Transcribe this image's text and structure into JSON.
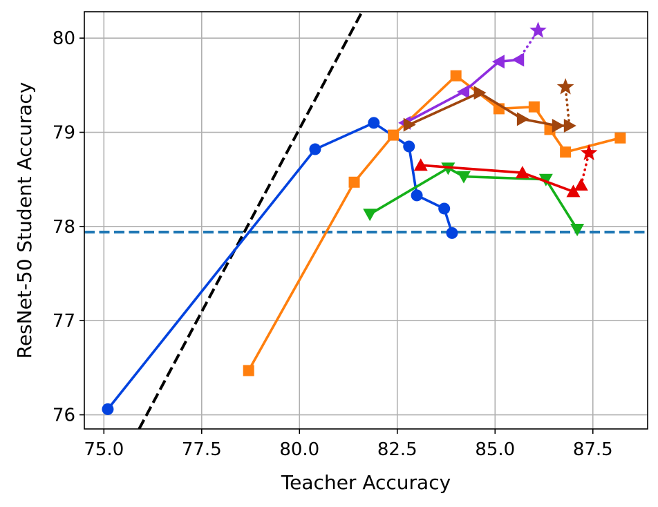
{
  "chart_data": {
    "type": "line",
    "xlabel": "Teacher Accuracy",
    "ylabel": "ResNet-50 Student Accuracy",
    "xlim": [
      74.5,
      88.9
    ],
    "ylim": [
      75.85,
      80.28
    ],
    "xticks": [
      75.0,
      77.5,
      80.0,
      82.5,
      85.0,
      87.5
    ],
    "xtick_labels": [
      "75.0",
      "77.5",
      "80.0",
      "82.5",
      "85.0",
      "87.5"
    ],
    "yticks": [
      76,
      77,
      78,
      79,
      80
    ],
    "ytick_labels": [
      "76",
      "77",
      "78",
      "79",
      "80"
    ],
    "grid": true,
    "reference_lines": [
      {
        "kind": "horizontal",
        "y": 77.94,
        "color": "#1f77b4",
        "style": "dashed"
      },
      {
        "kind": "diagonal",
        "points": [
          [
            75.9,
            75.85
          ],
          [
            81.6,
            80.28
          ]
        ],
        "color": "#000000",
        "style": "dashed"
      }
    ],
    "series": [
      {
        "color": "#0343df",
        "marker": "circle",
        "style": "solid",
        "x": [
          75.1,
          80.4,
          81.9,
          82.8,
          83.0,
          83.7,
          83.9
        ],
        "y": [
          76.06,
          78.82,
          79.1,
          78.85,
          78.33,
          78.19,
          77.93
        ]
      },
      {
        "color": "#ff7f0e",
        "marker": "square",
        "style": "solid",
        "x": [
          78.7,
          81.4,
          82.4,
          84.0,
          85.1,
          86.0,
          86.4,
          86.8,
          88.2
        ],
        "y": [
          76.47,
          78.47,
          78.97,
          79.6,
          79.25,
          79.27,
          79.03,
          78.79,
          78.94
        ]
      },
      {
        "color": "#15b01a",
        "marker": "triangle-down",
        "style": "solid",
        "x": [
          81.8,
          83.8,
          84.2,
          86.3,
          87.1
        ],
        "y": [
          78.13,
          78.62,
          78.53,
          78.5,
          77.97
        ]
      },
      {
        "color": "#e50000",
        "marker": "triangle-up",
        "style": "solid",
        "x": [
          83.1,
          85.7,
          87.0,
          87.2
        ],
        "y": [
          78.65,
          78.57,
          78.37,
          78.44
        ]
      },
      {
        "color": "#e50000",
        "marker": "star",
        "style": "dotted",
        "x": [
          87.2,
          87.4
        ],
        "y": [
          78.44,
          78.78
        ]
      },
      {
        "color": "#8e2ddf",
        "marker": "triangle-left",
        "style": "solid",
        "x": [
          82.7,
          84.2,
          85.1,
          85.6
        ],
        "y": [
          79.1,
          79.43,
          79.75,
          79.77
        ]
      },
      {
        "color": "#8e2ddf",
        "marker": "star",
        "style": "dotted",
        "x": [
          85.6,
          86.1
        ],
        "y": [
          79.77,
          80.08
        ]
      },
      {
        "color": "#a0450e",
        "marker": "triangle-right",
        "style": "solid",
        "x": [
          82.8,
          84.6,
          85.7,
          86.6,
          86.9
        ],
        "y": [
          79.08,
          79.42,
          79.14,
          79.07,
          79.07
        ]
      },
      {
        "color": "#a0450e",
        "marker": "star",
        "style": "dotted",
        "x": [
          86.9,
          86.8
        ],
        "y": [
          79.07,
          79.48
        ]
      }
    ]
  }
}
